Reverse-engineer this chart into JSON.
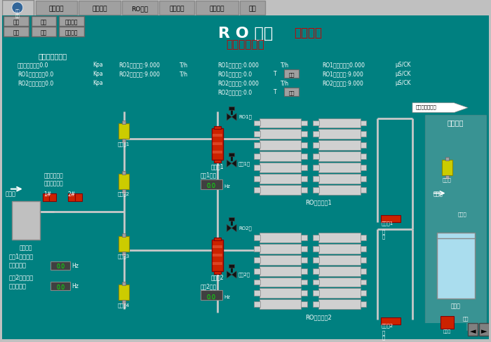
{
  "bg_color": "#008080",
  "menubar_color": "#c0c0c0",
  "title_bar_color": "#008080",
  "menu_items": [
    "系统总览",
    "砂滤系统",
    "RO系统",
    "湿床系统",
    "参数设定",
    "查看"
  ],
  "btn_row1": [
    "自动",
    "手动",
    "故障复位"
  ],
  "btn_row2": [
    "启动",
    "停止",
    "故障消音"
  ],
  "title_main": "R O 系统",
  "title_sub1": "（急停）",
  "title_sub2": "（本地手动）",
  "section_pressure": "压缩空气压力低",
  "pressure_labels": [
    "压缩空气压力：0.0",
    "RO1出口压力：0.0",
    "RO2出口压力：0.0"
  ],
  "pressure_unit": "Kpa",
  "teal_color": "#008080",
  "pipe_color": "#d0d0d0",
  "yellow_valve_color": "#cccc00",
  "red_pump_color": "#cc0000",
  "black_valve_color": "#222222",
  "label_color": "#ffffff",
  "red_label_color": "#cc0000",
  "display_bg": "#333333",
  "display_text": "#00ff00",
  "nav_btn_color": "#808080"
}
